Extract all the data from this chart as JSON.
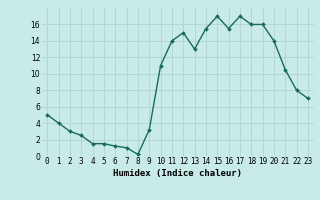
{
  "x": [
    0,
    1,
    2,
    3,
    4,
    5,
    6,
    7,
    8,
    9,
    10,
    11,
    12,
    13,
    14,
    15,
    16,
    17,
    18,
    19,
    20,
    21,
    22,
    23
  ],
  "y": [
    5,
    4,
    3,
    2.5,
    1.5,
    1.5,
    1.2,
    1.0,
    0.2,
    3.2,
    11,
    14,
    15,
    13,
    15.5,
    17,
    15.5,
    17,
    16,
    16,
    14,
    10.5,
    8,
    7
  ],
  "line_color": "#1a6b5e",
  "marker": "D",
  "markersize": 2.0,
  "bg_color": "#c8eae8",
  "grid_color": "#afd4d0",
  "xlabel": "Humidex (Indice chaleur)",
  "xlim": [
    -0.5,
    23.5
  ],
  "ylim": [
    0,
    18
  ],
  "yticks": [
    0,
    2,
    4,
    6,
    8,
    10,
    12,
    14,
    16
  ],
  "xticks": [
    0,
    1,
    2,
    3,
    4,
    5,
    6,
    7,
    8,
    9,
    10,
    11,
    12,
    13,
    14,
    15,
    16,
    17,
    18,
    19,
    20,
    21,
    22,
    23
  ],
  "xtick_labels": [
    "0",
    "1",
    "2",
    "3",
    "4",
    "5",
    "6",
    "7",
    "8",
    "9",
    "10",
    "11",
    "12",
    "13",
    "14",
    "15",
    "16",
    "17",
    "18",
    "19",
    "20",
    "21",
    "22",
    "23"
  ],
  "linewidth": 1.0,
  "xlabel_fontsize": 6.5,
  "tick_fontsize": 5.5
}
